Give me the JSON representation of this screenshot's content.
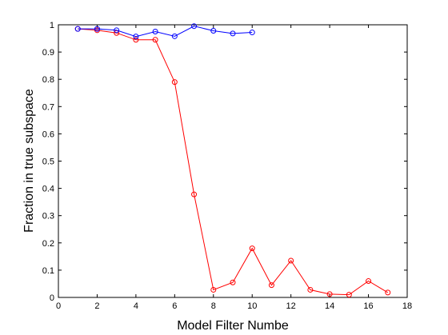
{
  "chart_data": {
    "type": "line",
    "title": "",
    "xlabel": "Model Filter Numbe",
    "ylabel": "Fraction in true subspace",
    "xlim": [
      0,
      18
    ],
    "ylim": [
      0,
      1
    ],
    "xticks": [
      0,
      2,
      4,
      6,
      8,
      10,
      12,
      14,
      16,
      18
    ],
    "yticks": [
      0,
      0.1,
      0.2,
      0.3,
      0.4,
      0.5,
      0.6,
      0.7,
      0.8,
      0.9,
      1
    ],
    "xtick_labels": [
      "0",
      "2",
      "4",
      "6",
      "8",
      "10",
      "12",
      "14",
      "16",
      "18"
    ],
    "ytick_labels": [
      "0",
      "0.1",
      "0.2",
      "0.3",
      "0.4",
      "0.5",
      "0.6",
      "0.7",
      "0.8",
      "0.9",
      "1"
    ],
    "grid": false,
    "legend": "none",
    "series": [
      {
        "color": "#ff0000",
        "marker": "circle",
        "x": [
          1,
          2,
          3,
          4,
          5,
          6,
          7,
          8,
          9,
          10,
          11,
          12,
          13,
          14,
          15,
          16,
          17
        ],
        "y": [
          0.985,
          0.98,
          0.97,
          0.945,
          0.945,
          0.79,
          0.378,
          0.028,
          0.055,
          0.18,
          0.045,
          0.135,
          0.028,
          0.012,
          0.01,
          0.06,
          0.018
        ]
      },
      {
        "color": "#0000ff",
        "marker": "circle",
        "x": [
          1,
          2,
          3,
          4,
          5,
          6,
          7,
          8,
          9,
          10
        ],
        "y": [
          0.985,
          0.985,
          0.98,
          0.957,
          0.975,
          0.958,
          0.995,
          0.978,
          0.968,
          0.972
        ]
      }
    ]
  }
}
